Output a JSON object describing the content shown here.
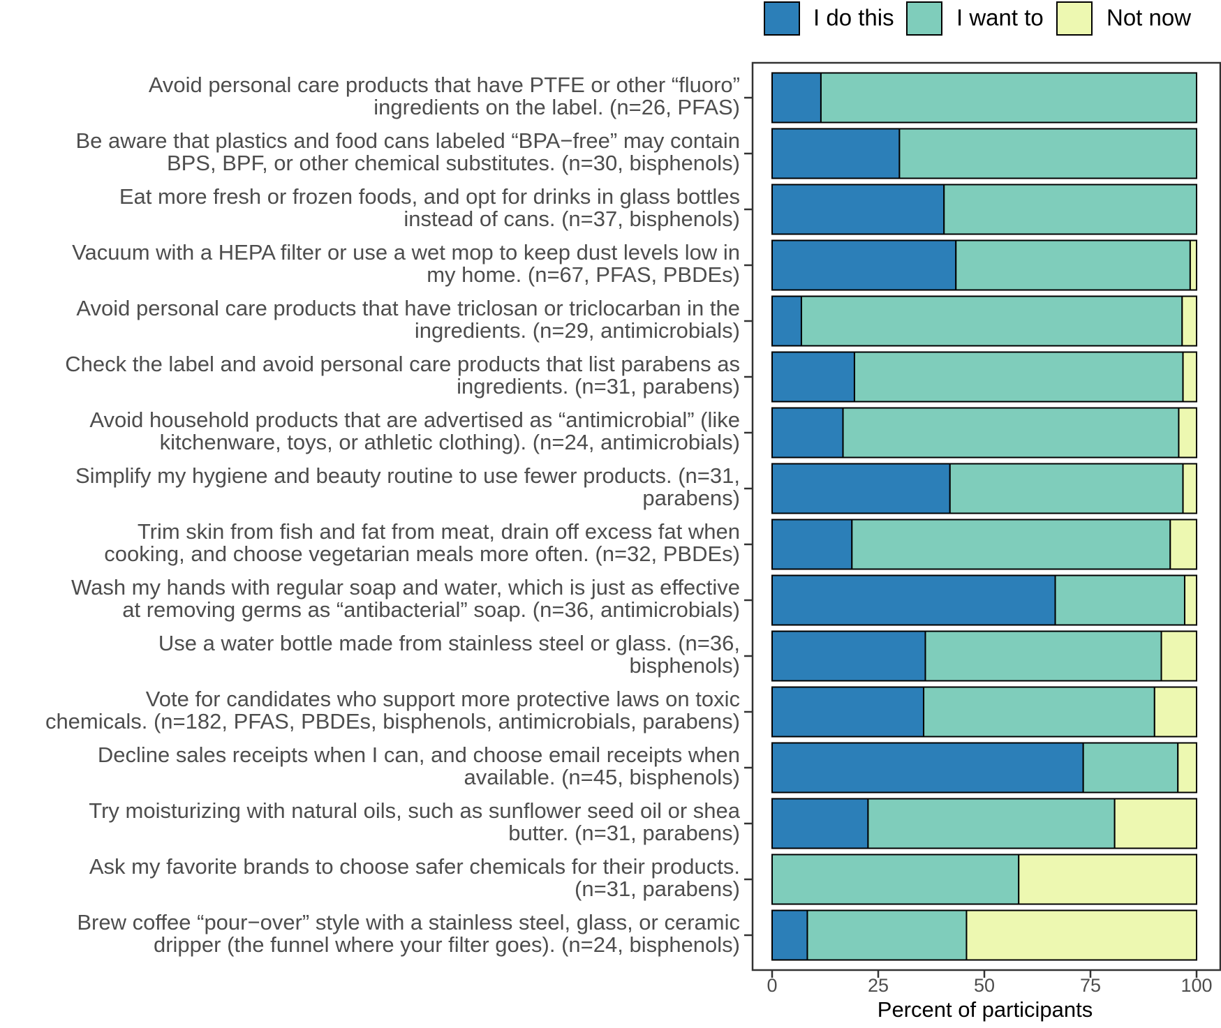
{
  "chart_data": {
    "type": "bar",
    "orientation": "horizontal",
    "stacked": true,
    "xlabel": "Percent of participants",
    "xlim": [
      0,
      100
    ],
    "xticks": [
      0,
      25,
      50,
      75,
      100
    ],
    "legend_position": "top-right",
    "series": [
      {
        "name": "I do this",
        "color": "#2c7fb8"
      },
      {
        "name": "I want to",
        "color": "#7fcdbb"
      },
      {
        "name": "Not now",
        "color": "#edf8b1"
      }
    ],
    "categories": [
      {
        "lines": [
          "Avoid personal care products that have PTFE or other “fluoro”",
          "ingredients on the label. (n=26, PFAS)"
        ],
        "values": [
          11.5,
          88.5,
          0
        ]
      },
      {
        "lines": [
          "Be aware that plastics and food cans labeled “BPA−free” may contain",
          "BPS, BPF, or other chemical substitutes. (n=30, bisphenols)"
        ],
        "values": [
          30.0,
          70.0,
          0
        ]
      },
      {
        "lines": [
          "Eat more fresh or frozen foods, and opt for drinks in glass bottles",
          "instead of cans. (n=37, bisphenols)"
        ],
        "values": [
          40.5,
          59.5,
          0
        ]
      },
      {
        "lines": [
          "Vacuum with a HEPA filter or use a wet mop to keep dust levels low in",
          "my home. (n=67, PFAS, PBDEs)"
        ],
        "values": [
          43.3,
          55.2,
          1.5
        ]
      },
      {
        "lines": [
          "Avoid personal care products that have triclosan or triclocarban in the",
          "ingredients. (n=29, antimicrobials)"
        ],
        "values": [
          6.9,
          89.7,
          3.4
        ]
      },
      {
        "lines": [
          "Check the label and avoid personal care products that list parabens as",
          "ingredients. (n=31, parabens)"
        ],
        "values": [
          19.4,
          77.4,
          3.2
        ]
      },
      {
        "lines": [
          "Avoid household products that are advertised as “antimicrobial” (like",
          "kitchenware, toys, or athletic clothing). (n=24, antimicrobials)"
        ],
        "values": [
          16.7,
          79.1,
          4.2
        ]
      },
      {
        "lines": [
          "Simplify my hygiene and beauty routine to use fewer products. (n=31,",
          "parabens)"
        ],
        "values": [
          41.9,
          54.9,
          3.2
        ]
      },
      {
        "lines": [
          "Trim skin from fish and fat from meat, drain off excess fat when",
          "cooking, and choose vegetarian meals more often. (n=32, PBDEs)"
        ],
        "values": [
          18.8,
          75.0,
          6.2
        ]
      },
      {
        "lines": [
          "Wash my hands with regular soap and water, which is just as effective",
          "at removing germs as “antibacterial” soap. (n=36, antimicrobials)"
        ],
        "values": [
          66.7,
          30.5,
          2.8
        ]
      },
      {
        "lines": [
          "Use a water bottle made from stainless steel or glass. (n=36,",
          "bisphenols)"
        ],
        "values": [
          36.1,
          55.6,
          8.3
        ]
      },
      {
        "lines": [
          "Vote for candidates who support more protective laws on toxic",
          "chemicals. (n=182, PFAS, PBDEs, bisphenols, antimicrobials, parabens)"
        ],
        "values": [
          35.7,
          54.4,
          9.9
        ]
      },
      {
        "lines": [
          "Decline sales receipts when I can, and choose email receipts when",
          "available. (n=45, bisphenols)"
        ],
        "values": [
          73.3,
          22.3,
          4.4
        ]
      },
      {
        "lines": [
          "Try moisturizing with natural oils, such as sunflower seed oil or shea",
          "butter. (n=31, parabens)"
        ],
        "values": [
          22.6,
          58.1,
          19.3
        ]
      },
      {
        "lines": [
          "Ask my favorite brands to choose safer chemicals for their products.",
          "(n=31, parabens)"
        ],
        "values": [
          0,
          58.1,
          41.9
        ]
      },
      {
        "lines": [
          "Brew coffee “pour−over” style with a stainless steel, glass, or ceramic",
          "dripper (the funnel where your filter goes). (n=24, bisphenols)"
        ],
        "values": [
          8.3,
          37.5,
          54.2
        ]
      }
    ]
  }
}
